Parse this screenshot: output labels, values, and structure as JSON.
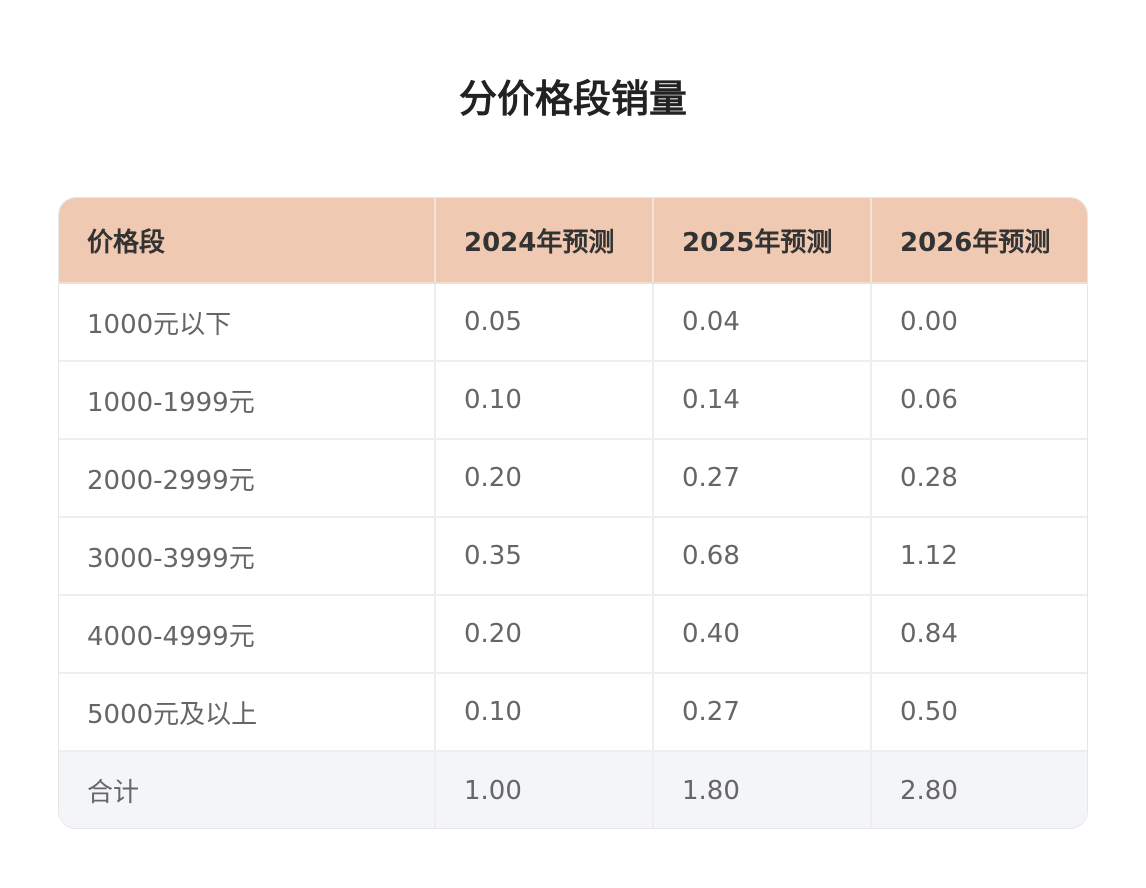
{
  "title": "分价格段销量",
  "table": {
    "headers": [
      "价格段",
      "2024年预测",
      "2025年预测",
      "2026年预测"
    ],
    "rows": [
      [
        "1000元以下",
        "0.05",
        "0.04",
        "0.00"
      ],
      [
        "1000-1999元",
        "0.10",
        "0.14",
        "0.06"
      ],
      [
        "2000-2999元",
        "0.20",
        "0.27",
        "0.28"
      ],
      [
        "3000-3999元",
        "0.35",
        "0.68",
        "1.12"
      ],
      [
        "4000-4999元",
        "0.20",
        "0.40",
        "0.84"
      ],
      [
        "5000元及以上",
        "0.10",
        "0.27",
        "0.50"
      ]
    ],
    "total": [
      "合计",
      "1.00",
      "1.80",
      "2.80"
    ]
  },
  "colors": {
    "header_bg": "#efc9b2",
    "total_row_bg": "#f4f5f9",
    "body_text": "#666666",
    "header_text": "#333333"
  }
}
